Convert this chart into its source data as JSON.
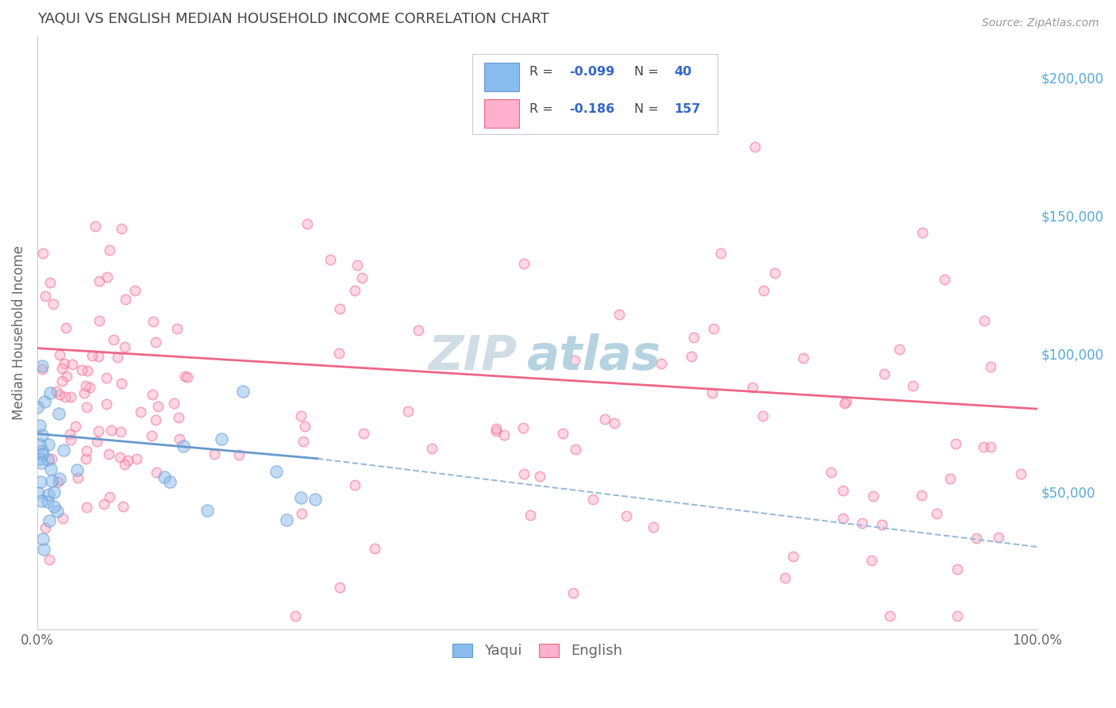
{
  "title": "YAQUI VS ENGLISH MEDIAN HOUSEHOLD INCOME CORRELATION CHART",
  "source": "Source: ZipAtlas.com",
  "ylabel": "Median Household Income",
  "xlim": [
    0.0,
    1.0
  ],
  "ylim": [
    0,
    215000
  ],
  "yaqui_R": -0.099,
  "yaqui_N": 40,
  "english_R": -0.186,
  "english_N": 157,
  "yaqui_color": "#88BBEE",
  "english_color": "#FFB0CC",
  "yaqui_line_color": "#6699CC",
  "english_line_color": "#EE6688",
  "dashed_line_color": "#99BBDD",
  "background_color": "#FFFFFF",
  "grid_color": "#CCCCCC",
  "title_color": "#444444",
  "ytick_color": "#55AADD",
  "label_color": "#666666",
  "legend_border_color": "#CCCCCC",
  "legend_text_dark": "#444444",
  "legend_text_blue": "#3366CC",
  "yaqui_scatter_seed": 7,
  "english_scatter_seed": 42,
  "yaqui_dot_size": 120,
  "english_dot_size": 80,
  "dot_alpha": 0.5,
  "dot_linewidth": 1.2,
  "english_line_x0": 0.0,
  "english_line_x1": 1.0,
  "english_line_y0": 102000,
  "english_line_y1": 80000,
  "yaqui_line_x0": 0.0,
  "yaqui_line_x1": 0.28,
  "yaqui_line_y0": 71000,
  "yaqui_line_y1": 62000,
  "dashed_line_x0": 0.28,
  "dashed_line_x1": 1.0,
  "dashed_line_y0": 62000,
  "dashed_line_y1": 30000
}
